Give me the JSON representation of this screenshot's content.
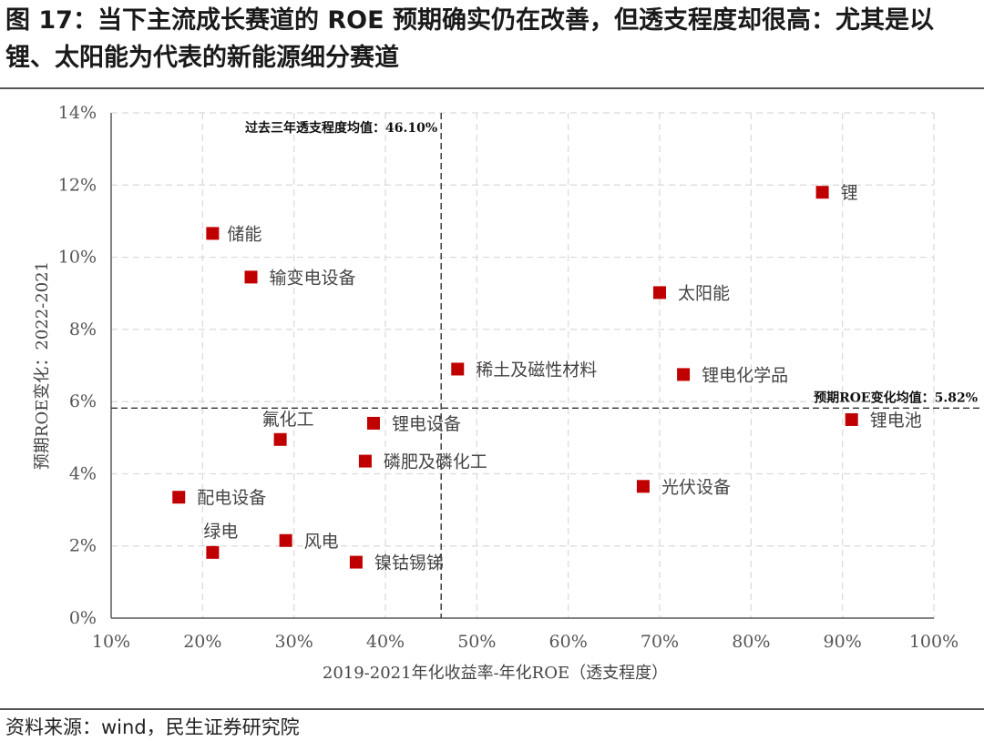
{
  "title": "图 17：当下主流成长赛道的 ROE 预期确实仍在改善，但透支程度却很高：尤其是以锂、太阳能为代表的新能源细分赛道",
  "source": "资料来源：wind，民生证券研究院",
  "colors": {
    "marker": "#c00000",
    "grid": "#d9d9d9",
    "axis": "#595959"
  },
  "chart_data": {
    "type": "scatter",
    "xlabel": "2019-2021年化收益率-年化ROE（透支程度）",
    "ylabel": "预期ROE变化：2022-2021",
    "xlim": [
      0.1,
      1.0
    ],
    "ylim": [
      0.0,
      0.14
    ],
    "x_ticks": [
      "10%",
      "20%",
      "30%",
      "40%",
      "50%",
      "60%",
      "70%",
      "80%",
      "90%",
      "100%"
    ],
    "y_ticks": [
      "0%",
      "2%",
      "4%",
      "6%",
      "8%",
      "10%",
      "12%",
      "14%"
    ],
    "grid": true,
    "reference_lines": [
      {
        "axis": "x",
        "value": 0.461,
        "label": "过去三年透支程度均值：46.10%"
      },
      {
        "axis": "y",
        "value": 0.0582,
        "label": "预期ROE变化均值：5.82%"
      }
    ],
    "points": [
      {
        "label": "锂",
        "x": 0.878,
        "y": 0.118
      },
      {
        "label": "储能",
        "x": 0.211,
        "y": 0.1066
      },
      {
        "label": "输变电设备",
        "x": 0.253,
        "y": 0.0945
      },
      {
        "label": "太阳能",
        "x": 0.7,
        "y": 0.0902
      },
      {
        "label": "稀土及磁性材料",
        "x": 0.479,
        "y": 0.069
      },
      {
        "label": "锂电化学品",
        "x": 0.726,
        "y": 0.0675
      },
      {
        "label": "锂电池",
        "x": 0.91,
        "y": 0.055
      },
      {
        "label": "锂电设备",
        "x": 0.387,
        "y": 0.054
      },
      {
        "label": "氟化工",
        "x": 0.285,
        "y": 0.0495
      },
      {
        "label": "磷肥及磷化工",
        "x": 0.378,
        "y": 0.0435
      },
      {
        "label": "光伏设备",
        "x": 0.682,
        "y": 0.0365
      },
      {
        "label": "配电设备",
        "x": 0.174,
        "y": 0.0335
      },
      {
        "label": "风电",
        "x": 0.291,
        "y": 0.0215
      },
      {
        "label": "绿电",
        "x": 0.211,
        "y": 0.0182
      },
      {
        "label": "镍钴锡锑",
        "x": 0.368,
        "y": 0.0155
      }
    ]
  }
}
